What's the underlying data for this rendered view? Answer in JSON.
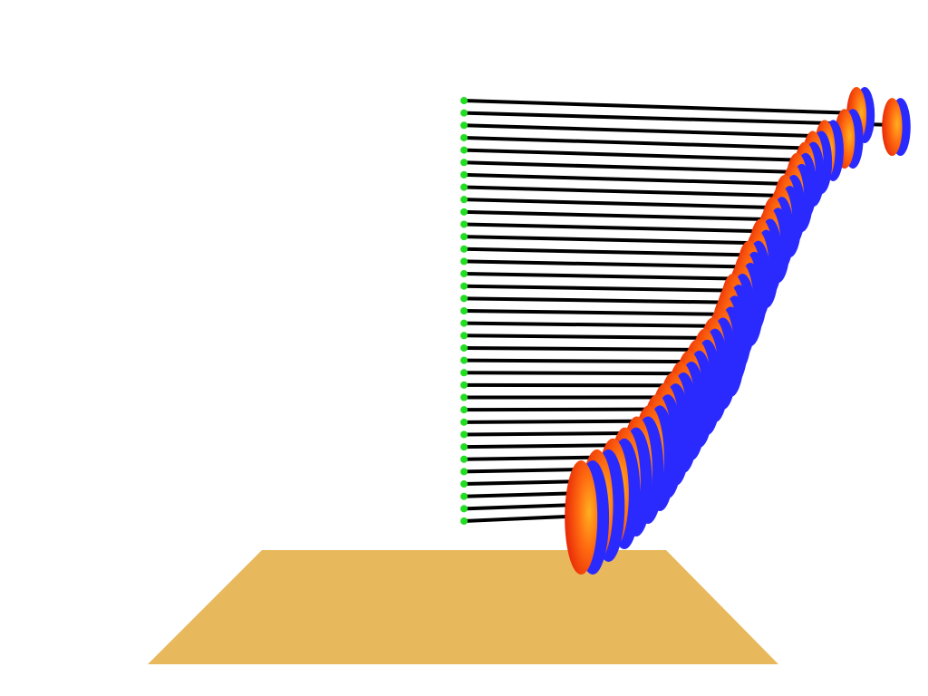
{
  "scene": {
    "background_color": "#ffffff",
    "floor_color": "#E8B85C",
    "cord_color": "#000000",
    "pivot_color": "#22DD22",
    "disc_face_inner_color": "#FFB020",
    "disc_face_mid_color": "#FF6A10",
    "disc_face_outer_color": "#E82808",
    "disc_rim_color": "#2A2AFF",
    "pendulum_count": 35,
    "swing_displacement_fraction": [
      1.0,
      1.09,
      0.97,
      0.92,
      0.89,
      0.87,
      0.85,
      0.84,
      0.82,
      0.81,
      0.79,
      0.78,
      0.76,
      0.75,
      0.73,
      0.72,
      0.71,
      0.69,
      0.68,
      0.67,
      0.66,
      0.64,
      0.62,
      0.6,
      0.58,
      0.56,
      0.54,
      0.52,
      0.5,
      0.48,
      0.45,
      0.42,
      0.39,
      0.35,
      0.31
    ]
  }
}
